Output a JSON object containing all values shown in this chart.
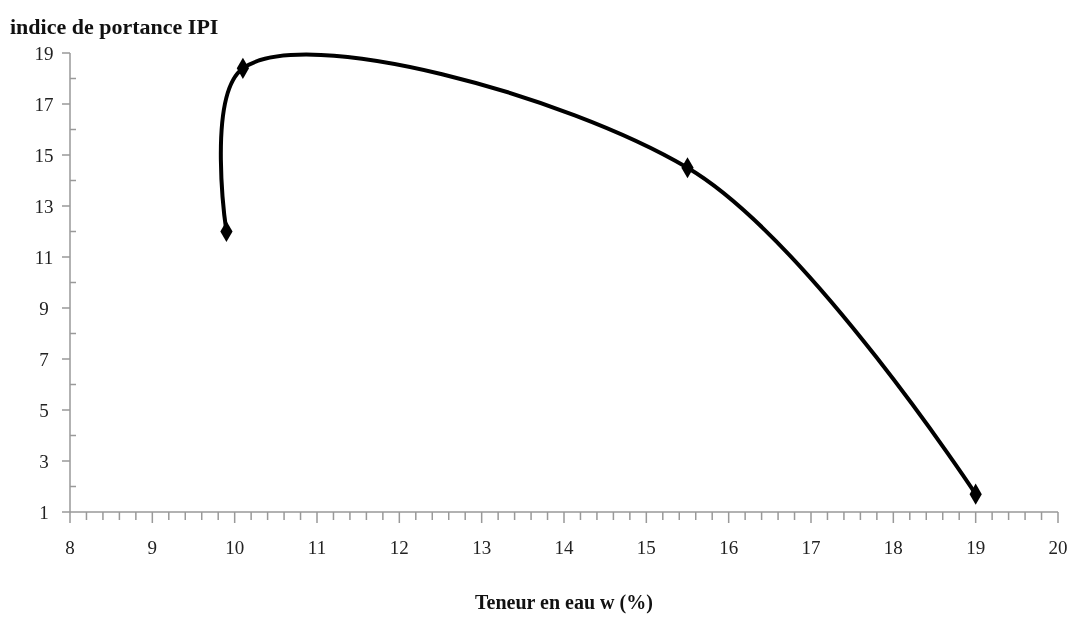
{
  "chart_data": {
    "type": "line",
    "title": "indice de portance IPI",
    "xlabel": "Teneur en eau w (%)",
    "x": [
      9.9,
      10.1,
      15.5,
      19
    ],
    "series": [
      {
        "color": "#000000",
        "values": [
          12,
          18.4,
          14.5,
          1.7
        ]
      }
    ],
    "marker": "diamond",
    "line_style": "solid",
    "grid": false,
    "xlim": [
      8,
      20
    ],
    "ylim": [
      1,
      19
    ],
    "xticks": [
      8,
      {
        "value": 8.2,
        "label": null
      },
      {
        "value": 8.4,
        "label": null
      },
      {
        "value": 8.6,
        "label": null
      },
      {
        "value": 8.8,
        "label": null
      },
      9,
      {
        "value": 9.2,
        "label": null
      },
      {
        "value": 9.4,
        "label": null
      },
      {
        "value": 9.6,
        "label": null
      },
      {
        "value": 9.8,
        "label": null
      },
      10,
      {
        "value": 10.2,
        "label": null
      },
      {
        "value": 10.4,
        "label": null
      },
      {
        "value": 10.6,
        "label": null
      },
      {
        "value": 10.8,
        "label": null
      },
      11,
      {
        "value": 11.2,
        "label": null
      },
      {
        "value": 11.4,
        "label": null
      },
      {
        "value": 11.6,
        "label": null
      },
      {
        "value": 11.8,
        "label": null
      },
      12,
      {
        "value": 12.2,
        "label": null
      },
      {
        "value": 12.4,
        "label": null
      },
      {
        "value": 12.6,
        "label": null
      },
      {
        "value": 12.8,
        "label": null
      },
      13,
      {
        "value": 13.2,
        "label": null
      },
      {
        "value": 13.4,
        "label": null
      },
      {
        "value": 13.6,
        "label": null
      },
      {
        "value": 13.8,
        "label": null
      },
      14,
      {
        "value": 14.2,
        "label": null
      },
      {
        "value": 14.4,
        "label": null
      },
      {
        "value": 14.6,
        "label": null
      },
      {
        "value": 14.8,
        "label": null
      },
      15,
      {
        "value": 15.2,
        "label": null
      },
      {
        "value": 15.4,
        "label": null
      },
      {
        "value": 15.6,
        "label": null
      },
      {
        "value": 15.8,
        "label": null
      },
      16,
      {
        "value": 16.2,
        "label": null
      },
      {
        "value": 16.4,
        "label": null
      },
      {
        "value": 16.6,
        "label": null
      },
      {
        "value": 16.8,
        "label": null
      },
      17,
      {
        "value": 17.2,
        "label": null
      },
      {
        "value": 17.4,
        "label": null
      },
      {
        "value": 17.6,
        "label": null
      },
      {
        "value": 17.8,
        "label": null
      },
      18,
      {
        "value": 18.2,
        "label": null
      },
      {
        "value": 18.4,
        "label": null
      },
      {
        "value": 18.6,
        "label": null
      },
      {
        "value": 18.8,
        "label": null
      },
      19,
      {
        "value": 19.2,
        "label": null
      },
      {
        "value": 19.4,
        "label": null
      },
      {
        "value": 19.6,
        "label": null
      },
      {
        "value": 19.8,
        "label": null
      },
      20
    ],
    "yticks": [
      1,
      {
        "value": 2,
        "label": null
      },
      3,
      {
        "value": 4,
        "label": null
      },
      5,
      {
        "value": 6,
        "label": null
      },
      7,
      {
        "value": 8,
        "label": null
      },
      9,
      {
        "value": 10,
        "label": null
      },
      11,
      {
        "value": 12,
        "label": null
      },
      13,
      {
        "value": 14,
        "label": null
      },
      15,
      {
        "value": 16,
        "label": null
      },
      17,
      {
        "value": 18,
        "label": null
      },
      19
    ]
  }
}
